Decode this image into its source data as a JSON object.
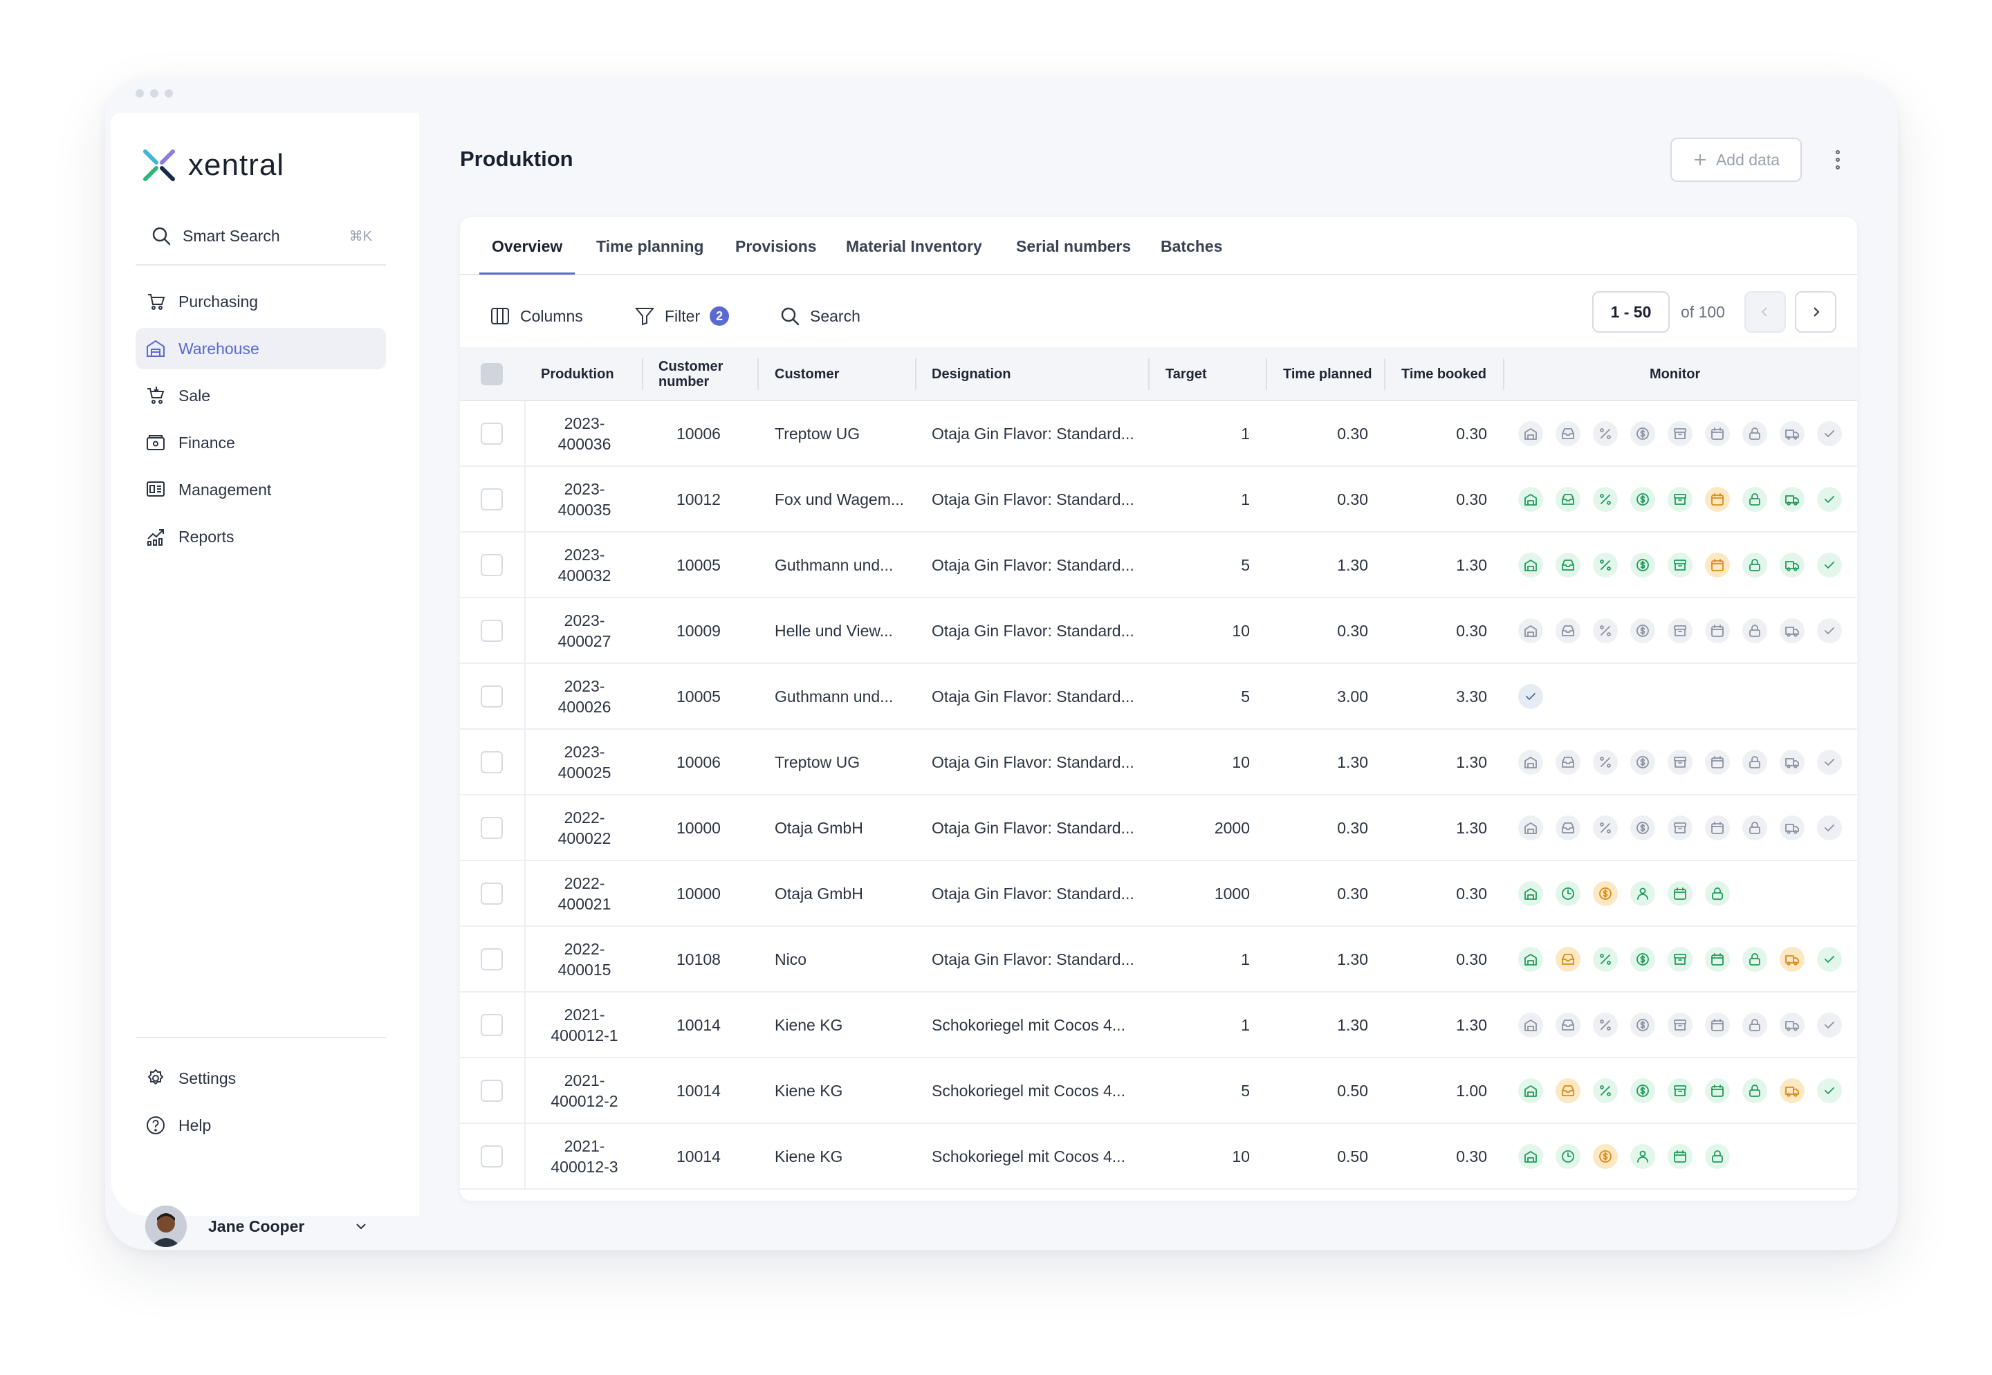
{
  "app": {
    "logo_text": "xentral",
    "brand_color": "#5b6ad2"
  },
  "sidebar": {
    "search": {
      "label": "Smart Search",
      "shortcut": "⌘K"
    },
    "items": [
      {
        "label": "Purchasing",
        "icon": "bag-icon",
        "active": false
      },
      {
        "label": "Warehouse",
        "icon": "warehouse-icon",
        "active": true
      },
      {
        "label": "Sale",
        "icon": "cart-icon",
        "active": false
      },
      {
        "label": "Finance",
        "icon": "wallet-icon",
        "active": false
      },
      {
        "label": "Management",
        "icon": "dashboard-icon",
        "active": false
      },
      {
        "label": "Reports",
        "icon": "chart-icon",
        "active": false
      }
    ],
    "bottom": [
      {
        "label": "Settings",
        "icon": "gear-icon"
      },
      {
        "label": "Help",
        "icon": "help-icon"
      }
    ],
    "user": {
      "name": "Jane Cooper"
    }
  },
  "header": {
    "title": "Produktion",
    "add_label": "Add data"
  },
  "tabs": [
    "Overview",
    "Time planning",
    "Provisions",
    "Material Inventory",
    "Serial numbers",
    "Batches"
  ],
  "toolbar": {
    "columns": "Columns",
    "filter": "Filter",
    "filter_count": "2",
    "search": "Search",
    "range": "1 - 50",
    "of": "of 100"
  },
  "table": {
    "headers": {
      "produktion": "Produktion",
      "customer_number": "Customer number",
      "customer": "Customer",
      "designation": "Designation",
      "target": "Target",
      "time_planned": "Time planned",
      "time_booked": "Time booked",
      "monitor": "Monitor"
    },
    "rows": [
      {
        "prod1": "2023-",
        "prod2": "400036",
        "custno": "10006",
        "customer": "Treptow UG",
        "designation": "Otaja Gin Flavor: Standard...",
        "target": "1",
        "planned": "0.30",
        "booked": "0.30",
        "monitor": "A"
      },
      {
        "prod1": "2023-",
        "prod2": "400035",
        "custno": "10012",
        "customer": "Fox und Wagem...",
        "designation": "Otaja Gin Flavor: Standard...",
        "target": "1",
        "planned": "0.30",
        "booked": "0.30",
        "monitor": "B"
      },
      {
        "prod1": "2023-",
        "prod2": "400032",
        "custno": "10005",
        "customer": "Guthmann und...",
        "designation": "Otaja Gin Flavor: Standard...",
        "target": "5",
        "planned": "1.30",
        "booked": "1.30",
        "monitor": "B"
      },
      {
        "prod1": "2023-",
        "prod2": "400027",
        "custno": "10009",
        "customer": "Helle und View...",
        "designation": "Otaja Gin Flavor: Standard...",
        "target": "10",
        "planned": "0.30",
        "booked": "0.30",
        "monitor": "A"
      },
      {
        "prod1": "2023-",
        "prod2": "400026",
        "custno": "10005",
        "customer": "Guthmann und...",
        "designation": "Otaja Gin Flavor: Standard...",
        "target": "5",
        "planned": "3.00",
        "booked": "3.30",
        "monitor": "C"
      },
      {
        "prod1": "2023-",
        "prod2": "400025",
        "custno": "10006",
        "customer": "Treptow UG",
        "designation": "Otaja Gin Flavor: Standard...",
        "target": "10",
        "planned": "1.30",
        "booked": "1.30",
        "monitor": "A"
      },
      {
        "prod1": "2022-",
        "prod2": "400022",
        "custno": "10000",
        "customer": "Otaja GmbH",
        "designation": "Otaja Gin Flavor: Standard...",
        "target": "2000",
        "planned": "0.30",
        "booked": "1.30",
        "monitor": "A"
      },
      {
        "prod1": "2022-",
        "prod2": "400021",
        "custno": "10000",
        "customer": "Otaja GmbH",
        "designation": "Otaja Gin Flavor: Standard...",
        "target": "1000",
        "planned": "0.30",
        "booked": "0.30",
        "monitor": "D"
      },
      {
        "prod1": "2022-",
        "prod2": "400015",
        "custno": "10108",
        "customer": "Nico",
        "designation": "Otaja Gin Flavor: Standard...",
        "target": "1",
        "planned": "1.30",
        "booked": "0.30",
        "monitor": "E"
      },
      {
        "prod1": "2021-",
        "prod2": "400012-1",
        "custno": "10014",
        "customer": "Kiene KG",
        "designation": "Schokoriegel mit Cocos 4...",
        "target": "1",
        "planned": "1.30",
        "booked": "1.30",
        "monitor": "A"
      },
      {
        "prod1": "2021-",
        "prod2": "400012-2",
        "custno": "10014",
        "customer": "Kiene KG",
        "designation": "Schokoriegel mit Cocos 4...",
        "target": "5",
        "planned": "0.50",
        "booked": "1.00",
        "monitor": "E"
      },
      {
        "prod1": "2021-",
        "prod2": "400012-3",
        "custno": "10014",
        "customer": "Kiene KG",
        "designation": "Schokoriegel mit Cocos 4...",
        "target": "10",
        "planned": "0.50",
        "booked": "0.30",
        "monitor": "D"
      }
    ]
  },
  "monitor_patterns": {
    "A": [
      [
        "warehouse-icon",
        "grey"
      ],
      [
        "inbox-icon",
        "grey"
      ],
      [
        "percent-icon",
        "grey"
      ],
      [
        "coin-icon",
        "grey"
      ],
      [
        "archive-icon",
        "grey"
      ],
      [
        "calendar-icon",
        "grey"
      ],
      [
        "lock-icon",
        "grey"
      ],
      [
        "truck-icon",
        "grey"
      ],
      [
        "check-icon",
        "grey"
      ]
    ],
    "B": [
      [
        "warehouse-icon",
        "green"
      ],
      [
        "inbox-icon",
        "green"
      ],
      [
        "percent-icon",
        "green"
      ],
      [
        "coin-icon",
        "green"
      ],
      [
        "archive-icon",
        "green"
      ],
      [
        "calendar-icon",
        "orange"
      ],
      [
        "lock-icon",
        "green"
      ],
      [
        "truck-icon",
        "green"
      ],
      [
        "check-icon",
        "green"
      ]
    ],
    "C": [
      [
        "check-icon",
        "blue"
      ]
    ],
    "D": [
      [
        "warehouse-icon",
        "green"
      ],
      [
        "clock-icon",
        "green"
      ],
      [
        "coin-icon",
        "orange"
      ],
      [
        "person-icon",
        "green"
      ],
      [
        "calendar-icon",
        "green"
      ],
      [
        "lock-icon",
        "green"
      ]
    ],
    "E": [
      [
        "warehouse-icon",
        "green"
      ],
      [
        "inbox-icon",
        "orange"
      ],
      [
        "percent-icon",
        "green"
      ],
      [
        "coin-icon",
        "green"
      ],
      [
        "archive-icon",
        "green"
      ],
      [
        "calendar-icon",
        "green"
      ],
      [
        "lock-icon",
        "green"
      ],
      [
        "truck-icon",
        "orange"
      ],
      [
        "check-icon",
        "green"
      ]
    ]
  }
}
